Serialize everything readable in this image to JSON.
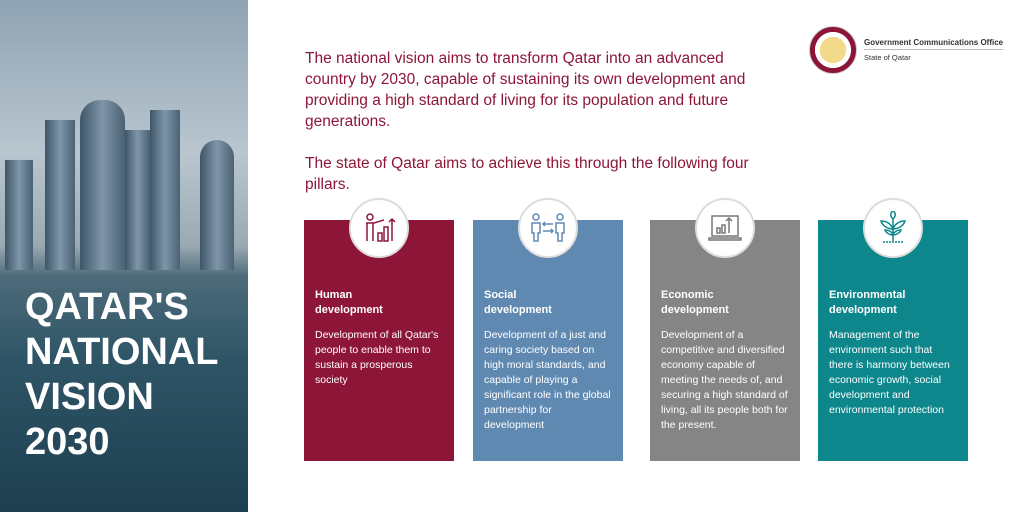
{
  "title_lines": [
    "QATAR'S",
    "NATIONAL",
    "VISION",
    "2030"
  ],
  "intro": [
    "The national vision aims to transform Qatar into an advanced country by 2030, capable of sustaining its own development and providing a high standard of living for its population and future generations.",
    "The state of Qatar aims to achieve this through the following four pillars."
  ],
  "logo": {
    "name": "Government Communications Office",
    "sub": "State of Qatar",
    "seal_text": "STATE OF QATAR"
  },
  "pillars": [
    {
      "title": "Human development",
      "text": "Development of all Qatar's people to enable them to sustain a prosperous society",
      "color": "#8d1638",
      "icon": "person-growth-chart-icon"
    },
    {
      "title": "Social development",
      "text": "Development of a just and caring society based on high moral standards, and capable of playing a significant role in the global partnership for development",
      "color": "#6089b2",
      "icon": "people-exchange-icon"
    },
    {
      "title": "Economic development",
      "text": "Development of a competitive and diversified economy capable of meeting the needs of, and securing a high standard of living, all its people both for the present.",
      "color": "#858585",
      "icon": "laptop-chart-icon"
    },
    {
      "title": "Environmental development",
      "text": "Management of the environment such that there is harmony between economic growth, social development and environmental protection",
      "color": "#0d878b",
      "icon": "plant-icon"
    }
  ]
}
